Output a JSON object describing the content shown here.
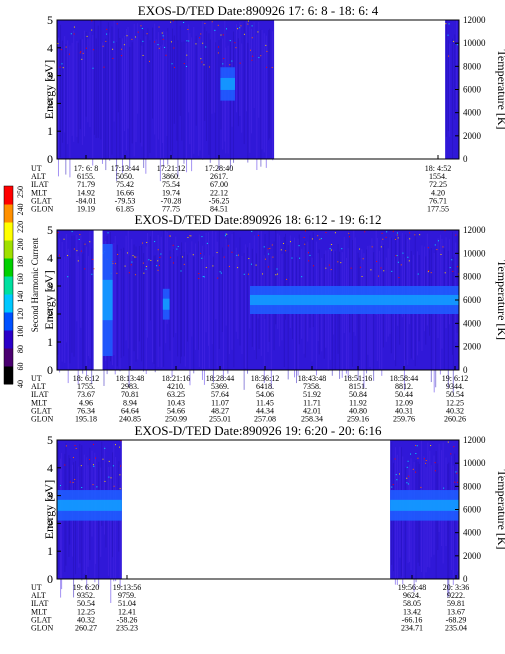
{
  "panels": [
    {
      "title": "EXOS-D/TED   Date:890926  17: 6: 8 - 18: 6: 4",
      "y_label": "Energy [eV]",
      "y2_label": "Temperature [K]",
      "y_ticks": [
        0,
        1,
        2,
        3,
        4,
        5
      ],
      "y2_ticks": [
        0,
        2000,
        4000,
        6000,
        8000,
        10000,
        12000
      ],
      "orbit_labels": [
        "UT",
        "ALT",
        "ILAT",
        "MLT",
        "GLAT",
        "GLON"
      ],
      "orbit_columns": [
        {
          "values": [
            "17: 6: 8",
            "6155.",
            "71.79",
            "14.92",
            "-84.01",
            "19.19"
          ]
        },
        {
          "values": [
            "17:13:44",
            "5050.",
            "75.42",
            "16.66",
            "-79.53",
            "61.85"
          ]
        },
        {
          "values": [
            "17:21:12",
            "3860.",
            "75.54",
            "19.74",
            "-70.28",
            "77.75"
          ]
        },
        {
          "values": [
            "17:28:40",
            "2617.",
            "67.00",
            "22.12",
            "-56.25",
            "84.51"
          ]
        },
        {
          "values": [
            "18: 4:52",
            "1554.",
            "72.25",
            "4.20",
            "76.71",
            "177.55"
          ]
        }
      ]
    },
    {
      "title": "EXOS-D/TED   Date:890926  18: 6:12 - 19: 6:12",
      "y_label": "Energy [eV]",
      "y2_label": "Temperature [K]",
      "y_ticks": [
        0,
        1,
        2,
        3,
        4,
        5
      ],
      "y2_ticks": [
        0,
        2000,
        4000,
        6000,
        8000,
        10000,
        12000
      ],
      "orbit_labels": [
        "UT",
        "ALT",
        "ILAT",
        "MLT",
        "GLAT",
        "GLON"
      ],
      "orbit_columns": [
        {
          "values": [
            "18: 6:12",
            "1755.",
            "73.67",
            "4.96",
            "76.34",
            "195.18"
          ]
        },
        {
          "values": [
            "18:13:48",
            "2983.",
            "70.81",
            "8.94",
            "64.64",
            "240.85"
          ]
        },
        {
          "values": [
            "18:21:16",
            "4210.",
            "63.25",
            "10.43",
            "54.66",
            "250.99"
          ]
        },
        {
          "values": [
            "18:28:44",
            "5369.",
            "57.64",
            "11.07",
            "48.27",
            "255.01"
          ]
        },
        {
          "values": [
            "18:36:12",
            "6418.",
            "54.06",
            "11.45",
            "44.34",
            "257.08"
          ]
        },
        {
          "values": [
            "18:43:48",
            "7358.",
            "51.92",
            "11.71",
            "42.01",
            "258.34"
          ]
        },
        {
          "values": [
            "18:51:16",
            "8151.",
            "50.84",
            "11.92",
            "40.80",
            "259.16"
          ]
        },
        {
          "values": [
            "18:58:44",
            "8812.",
            "50.44",
            "12.09",
            "40.31",
            "259.76"
          ]
        },
        {
          "values": [
            "19: 6:12",
            "9344.",
            "50.54",
            "12.25",
            "40.32",
            "260.26"
          ]
        }
      ]
    },
    {
      "title": "EXOS-D/TED   Date:890926  19: 6:20 - 20: 6:16",
      "y_label": "Energy [eV]",
      "y2_label": "Temperature [K]",
      "y_ticks": [
        0,
        1,
        2,
        3,
        4,
        5
      ],
      "y2_ticks": [
        0,
        2000,
        4000,
        6000,
        8000,
        10000,
        12000
      ],
      "orbit_labels": [
        "UT",
        "ALT",
        "ILAT",
        "MLT",
        "GLAT",
        "GLON"
      ],
      "orbit_columns": [
        {
          "values": [
            "19: 6:20",
            "9352.",
            "50.54",
            "12.25",
            "40.32",
            "260.27"
          ]
        },
        {
          "values": [
            "19:13:56",
            "9759.",
            "51.04",
            "12.41",
            "-58.26",
            "235.23"
          ]
        },
        {
          "values": [
            "19:56:48",
            "9624.",
            "58.05",
            "13.42",
            "-66.16",
            "234.71"
          ]
        },
        {
          "values": [
            "20: 3:36",
            "9222.",
            "59.81",
            "13.67",
            "-68.29",
            "235.04"
          ]
        }
      ]
    }
  ],
  "colorbar": {
    "label": "Second Harmonic Current",
    "ticks": [
      "40",
      "60",
      "80",
      "100",
      "120",
      "140",
      "160",
      "180",
      "200",
      "220",
      "240",
      "250"
    ],
    "colors": [
      "#000000",
      "#4a0070",
      "#2a00c8",
      "#0050ff",
      "#00c8ff",
      "#00e0a0",
      "#00d000",
      "#a0e000",
      "#ffff00",
      "#ff9000",
      "#ff0000"
    ]
  },
  "chart_data": [
    {
      "type": "heatmap",
      "title": "EXOS-D/TED   Date:890926  17: 6: 8 - 18: 6: 4",
      "xlabel": "UT",
      "ylabel": "Energy [eV]",
      "y2label": "Temperature [K]",
      "ylim": [
        0,
        5
      ],
      "y2lim": [
        0,
        12000
      ],
      "x_range": [
        "17: 6: 8",
        "18: 6: 4"
      ],
      "data_segments": [
        [
          "17: 6: 8",
          "17:38:30"
        ],
        [
          "18: 4:00",
          "18: 6: 4"
        ]
      ],
      "features": [
        {
          "x_range": [
            "17:30:30",
            "17:32:40"
          ],
          "y_range": [
            2.1,
            3.3
          ],
          "level": "high"
        }
      ]
    },
    {
      "type": "heatmap",
      "title": "EXOS-D/TED   Date:890926  18: 6:12 - 19: 6:12",
      "xlabel": "UT",
      "ylabel": "Energy [eV]",
      "y2label": "Temperature [K]",
      "ylim": [
        0,
        5
      ],
      "y2lim": [
        0,
        12000
      ],
      "x_range": [
        "18: 6:12",
        "19: 6:12"
      ],
      "data_segments": [
        [
          "18: 6:12",
          "18:11:40"
        ],
        [
          "18:13:00",
          "19: 6:12"
        ]
      ],
      "features": [
        {
          "x_range": [
            "18:13:00",
            "18:14:30"
          ],
          "y_range": [
            0.5,
            4.5
          ],
          "level": "high"
        },
        {
          "x_range": [
            "18:22:00",
            "18:23:00"
          ],
          "y_range": [
            1.8,
            2.9
          ],
          "level": "high"
        },
        {
          "x_range": [
            "18:35:00",
            "19: 6:12"
          ],
          "y_range": [
            2.0,
            3.0
          ],
          "level": "high"
        }
      ]
    },
    {
      "type": "heatmap",
      "title": "EXOS-D/TED   Date:890926  19: 6:20 - 20: 6:16",
      "xlabel": "UT",
      "ylabel": "Energy [eV]",
      "y2label": "Temperature [K]",
      "ylim": [
        0,
        5
      ],
      "y2lim": [
        0,
        12000
      ],
      "x_range": [
        "19: 6:20",
        "20: 6:16"
      ],
      "data_segments": [
        [
          "19: 6:20",
          "19:16:00"
        ],
        [
          "19:56:00",
          "20: 6:16"
        ]
      ],
      "features": [
        {
          "x_range": [
            "19: 6:20",
            "19:16:00"
          ],
          "y_range": [
            2.1,
            3.2
          ],
          "level": "high"
        },
        {
          "x_range": [
            "19:56:00",
            "20: 6:16"
          ],
          "y_range": [
            2.1,
            3.2
          ],
          "level": "high"
        }
      ]
    }
  ]
}
